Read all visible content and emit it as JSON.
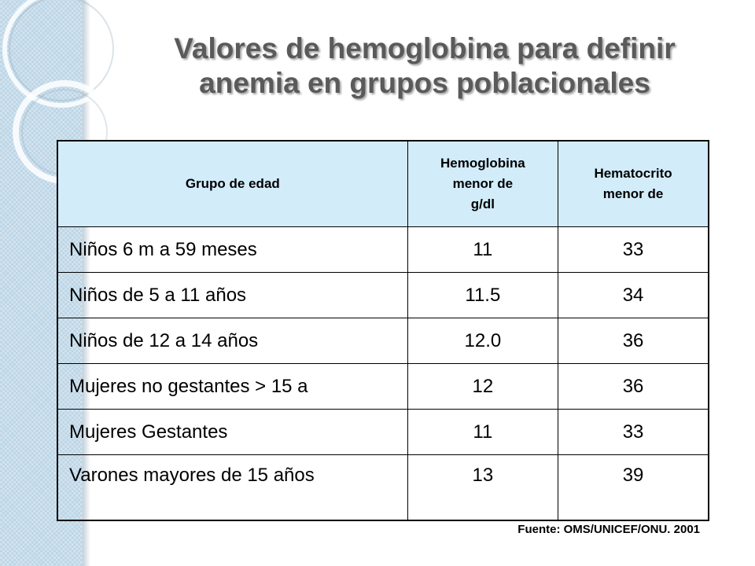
{
  "slide": {
    "title_line1": "Valores de hemoglobina para definir",
    "title_line2": "anemia en grupos poblacionales",
    "source": "Fuente: OMS/UNICEF/ONU. 2001",
    "colors": {
      "header_bg": "#d2ecfa",
      "sidebar": "#bcd5e6",
      "title": "#5a5a5a"
    }
  },
  "table": {
    "headers": {
      "group": "Grupo de edad",
      "hb_line1": "Hemoglobina",
      "hb_line2": "menor de",
      "hb_line3": "g/dl",
      "hto_line1": "Hematocrito",
      "hto_line2": "menor  de"
    },
    "rows": [
      {
        "group": "Niños 6 m a 59 meses",
        "hemoglobin": "11",
        "hematocrit": "33"
      },
      {
        "group": "Niños de 5 a 11 años",
        "hemoglobin": "11.5",
        "hematocrit": "34"
      },
      {
        "group": "Niños de 12 a 14 años",
        "hemoglobin": "12.0",
        "hematocrit": "36"
      },
      {
        "group": "Mujeres no gestantes > 15 a",
        "hemoglobin": "12",
        "hematocrit": "36"
      },
      {
        "group": "Mujeres Gestantes",
        "hemoglobin": "11",
        "hematocrit": "33"
      },
      {
        "group": "Varones mayores de 15 años",
        "hemoglobin": "13",
        "hematocrit": "39"
      }
    ]
  }
}
